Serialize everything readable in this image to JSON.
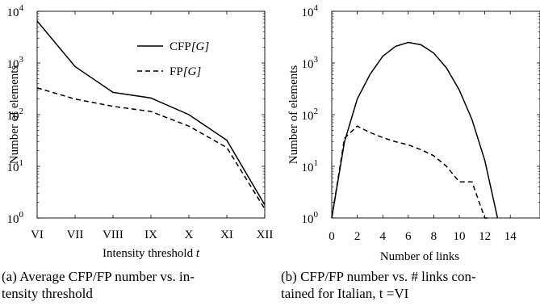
{
  "chart_data": [
    {
      "type": "line",
      "ylabel": "Number of elements",
      "xlabel": "Intensity threshold t",
      "yscale": "log",
      "ylim": [
        1,
        10000
      ],
      "y_ticks": [
        1,
        10,
        100,
        1000,
        10000
      ],
      "y_tick_labels": [
        "10^0",
        "10^1",
        "10^2",
        "10^3",
        "10^4"
      ],
      "categories": [
        "VI",
        "VII",
        "VIII",
        "IX",
        "X",
        "XI",
        "XII"
      ],
      "series": [
        {
          "name": "CFP[G]",
          "style": "solid",
          "values": [
            6500,
            850,
            270,
            210,
            100,
            32,
            1.8
          ]
        },
        {
          "name": "FP[G]",
          "style": "dashed",
          "values": [
            330,
            200,
            145,
            115,
            60,
            23,
            1.5
          ]
        }
      ],
      "legend": {
        "position": "top-right"
      },
      "caption": "(a) Average CFP/FP number vs. intensity threshold"
    },
    {
      "type": "line",
      "ylabel": "Number of elements",
      "xlabel": "Number of links",
      "yscale": "log",
      "ylim": [
        1,
        10000
      ],
      "y_ticks": [
        1,
        10,
        100,
        1000,
        10000
      ],
      "y_tick_labels": [
        "10^0",
        "10^1",
        "10^2",
        "10^3",
        "10^4"
      ],
      "xlim": [
        0,
        14
      ],
      "x_ticks": [
        0,
        2,
        4,
        6,
        8,
        10,
        12,
        14
      ],
      "series": [
        {
          "name": "CFP",
          "style": "solid",
          "x": [
            0,
            1,
            2,
            3,
            4,
            5,
            6,
            7,
            8,
            9,
            10,
            11,
            12,
            13
          ],
          "y": [
            1,
            30,
            200,
            600,
            1350,
            2100,
            2500,
            2250,
            1550,
            800,
            300,
            80,
            13,
            1
          ]
        },
        {
          "name": "FP",
          "style": "dashed",
          "x": [
            0,
            1,
            2,
            3,
            4,
            5,
            6,
            7,
            8,
            9,
            10,
            11,
            12,
            12.3
          ],
          "y": [
            1,
            35,
            60,
            45,
            36,
            30,
            26,
            21,
            16,
            10,
            5,
            5,
            1,
            1
          ]
        }
      ],
      "caption": "(b) CFP/FP number vs. # links contained for Italian, t =VI"
    }
  ],
  "captions": {
    "a_line1": "(a) Average CFP/FP number vs. in-",
    "a_line2": "tensity threshold",
    "b_line1": "(b) CFP/FP number vs. # links con-",
    "b_line2": "tained for Italian, t =VI"
  },
  "labels": {
    "a_ylabel": "Number of elements",
    "a_xlabel": "Intensity threshold",
    "a_xlabel_var": "t",
    "b_ylabel": "Number of elements",
    "b_xlabel": "Number of links",
    "tick_base": "10",
    "tick_exps": [
      "0",
      "1",
      "2",
      "3",
      "4"
    ],
    "legend_cfp_pre": "CFP",
    "legend_fp_pre": "FP",
    "legend_g": "[G]",
    "b_x_ticks": [
      "0",
      "2",
      "4",
      "6",
      "8",
      "10",
      "12",
      "14"
    ]
  }
}
